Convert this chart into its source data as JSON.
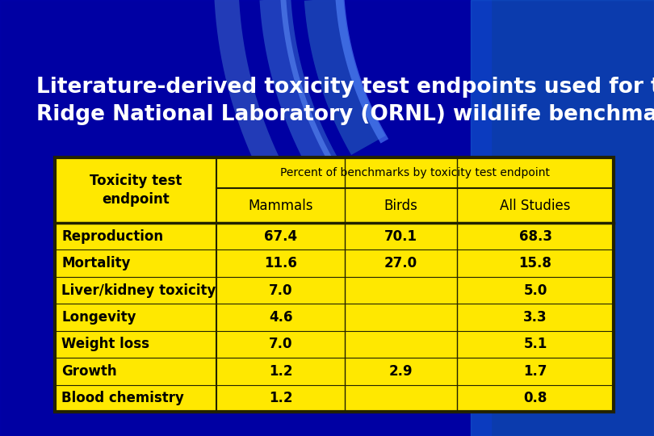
{
  "title_line1": "Literature-derived toxicity test endpoints used for the Oak",
  "title_line2": "Ridge National Laboratory (ORNL) wildlife benchmarks",
  "title_color": "#FFFFFF",
  "title_fontsize": 19,
  "bg_dark": "#000066",
  "bg_mid": "#0000AA",
  "bg_right": "#1155CC",
  "table_bg": "#FFE800",
  "table_border_color": "#222200",
  "header1": "Toxicity test\nendpoint",
  "header2": "Percent of benchmarks by toxicity test endpoint",
  "subheader_mammals": "Mammals",
  "subheader_birds": "Birds",
  "subheader_all": "All Studies",
  "rows": [
    {
      "endpoint": "Reproduction",
      "mammals": "67.4",
      "birds": "70.1",
      "all": "68.3"
    },
    {
      "endpoint": "Mortality",
      "mammals": "11.6",
      "birds": "27.0",
      "all": "15.8"
    },
    {
      "endpoint": "Liver/kidney toxicity",
      "mammals": "7.0",
      "birds": "",
      "all": "5.0"
    },
    {
      "endpoint": "Longevity",
      "mammals": "4.6",
      "birds": "",
      "all": "3.3"
    },
    {
      "endpoint": "Weight loss",
      "mammals": "7.0",
      "birds": "",
      "all": "5.1"
    },
    {
      "endpoint": "Growth",
      "mammals": "1.2",
      "birds": "2.9",
      "all": "1.7"
    },
    {
      "endpoint": "Blood chemistry",
      "mammals": "1.2",
      "birds": "",
      "all": "0.8"
    }
  ],
  "table_text_color": "#000000",
  "table_data_fontsize": 12,
  "table_header_fontsize": 12,
  "arc1_color": "#3366CC",
  "arc2_color": "#4477DD",
  "arc3_color": "#5588EE"
}
